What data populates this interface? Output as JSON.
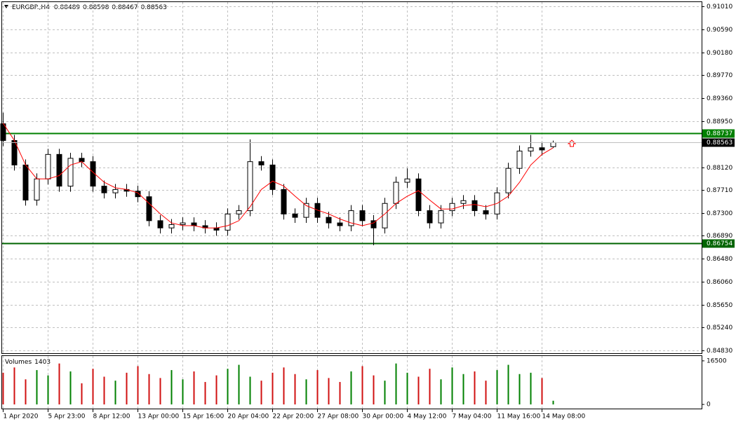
{
  "chart_data": {
    "type": "candlestick",
    "symbol": "EURGBP.,H4",
    "categories": [
      "1 Apr 2020",
      null,
      null,
      null,
      "5 Apr 23:00",
      null,
      null,
      null,
      "8 Apr 12:00",
      null,
      null,
      null,
      "13 Apr 00:00",
      null,
      null,
      null,
      "15 Apr 16:00",
      null,
      null,
      null,
      "20 Apr 04:00",
      null,
      null,
      null,
      "22 Apr 20:00",
      null,
      null,
      null,
      "27 Apr 08:00",
      null,
      null,
      null,
      "30 Apr 00:00",
      null,
      null,
      null,
      "4 May 12:00",
      null,
      null,
      null,
      "7 May 04:00",
      null,
      null,
      null,
      "11 May 16:00",
      null,
      null,
      null,
      "14 May 08:00",
      null
    ],
    "open": [
      0.889,
      0.886,
      0.8816,
      0.8753,
      0.8791,
      0.8835,
      0.8778,
      0.8828,
      0.8822,
      0.8778,
      0.8766,
      0.8772,
      0.8769,
      0.8759,
      0.8716,
      0.8703,
      0.8709,
      0.8712,
      0.8707,
      0.8703,
      0.8699,
      0.8728,
      0.8734,
      0.8822,
      0.8816,
      0.8772,
      0.8728,
      0.8722,
      0.8747,
      0.8722,
      0.8712,
      0.8707,
      0.8734,
      0.8716,
      0.8703,
      0.8747,
      0.8785,
      0.8791,
      0.8734,
      0.8712,
      0.8734,
      0.8747,
      0.8752,
      0.8734,
      0.8728,
      0.8766,
      0.881,
      0.8841,
      0.8847,
      0.88489
    ],
    "high": [
      0.891,
      0.887,
      0.8826,
      0.8801,
      0.8845,
      0.8845,
      0.8838,
      0.8838,
      0.8832,
      0.8788,
      0.8782,
      0.8782,
      0.8779,
      0.8769,
      0.8726,
      0.8719,
      0.8722,
      0.8722,
      0.8717,
      0.8713,
      0.8738,
      0.8744,
      0.8862,
      0.8832,
      0.8826,
      0.8782,
      0.8738,
      0.8757,
      0.8757,
      0.8732,
      0.8722,
      0.8744,
      0.8744,
      0.8726,
      0.8757,
      0.8795,
      0.881,
      0.8801,
      0.8744,
      0.8744,
      0.8757,
      0.8762,
      0.8762,
      0.8744,
      0.8776,
      0.882,
      0.8851,
      0.887,
      0.8857,
      0.88598
    ],
    "low": [
      0.885,
      0.8806,
      0.8743,
      0.8743,
      0.8781,
      0.8768,
      0.8768,
      0.8812,
      0.8768,
      0.8756,
      0.8756,
      0.8759,
      0.8749,
      0.8706,
      0.8693,
      0.8693,
      0.8699,
      0.8697,
      0.8693,
      0.8689,
      0.8689,
      0.8718,
      0.8724,
      0.8806,
      0.8762,
      0.8718,
      0.8712,
      0.8712,
      0.8712,
      0.8702,
      0.8697,
      0.8697,
      0.8706,
      0.8672,
      0.8693,
      0.8737,
      0.8775,
      0.8724,
      0.8702,
      0.8702,
      0.8724,
      0.8737,
      0.8724,
      0.8718,
      0.8718,
      0.8756,
      0.88,
      0.8831,
      0.8833,
      0.88467
    ],
    "close": [
      0.886,
      0.8816,
      0.8753,
      0.8791,
      0.8835,
      0.8778,
      0.8828,
      0.8822,
      0.8778,
      0.8766,
      0.8772,
      0.8769,
      0.8759,
      0.8716,
      0.8703,
      0.8709,
      0.8712,
      0.8707,
      0.8703,
      0.8699,
      0.8728,
      0.8734,
      0.8822,
      0.8816,
      0.8772,
      0.8728,
      0.8722,
      0.8747,
      0.8722,
      0.8712,
      0.8707,
      0.8734,
      0.8716,
      0.8703,
      0.8747,
      0.8785,
      0.8791,
      0.8734,
      0.8712,
      0.8734,
      0.8747,
      0.8752,
      0.8734,
      0.8728,
      0.8766,
      0.881,
      0.8841,
      0.8847,
      0.8843,
      0.88563
    ],
    "ylim": [
      0.8478,
      0.91085
    ],
    "yticks": [
      {
        "value": 0.9101,
        "label": "0.91010"
      },
      {
        "value": 0.9059,
        "label": "0.90590"
      },
      {
        "value": 0.9018,
        "label": "0.90180"
      },
      {
        "value": 0.8977,
        "label": "0.89770"
      },
      {
        "value": 0.8936,
        "label": "0.89360"
      },
      {
        "value": 0.8895,
        "label": "0.88950"
      },
      {
        "value": 0.8812,
        "label": "0.88120"
      },
      {
        "value": 0.8771,
        "label": "0.87710"
      },
      {
        "value": 0.873,
        "label": "0.87300"
      },
      {
        "value": 0.8689,
        "label": "0.86890"
      },
      {
        "value": 0.8648,
        "label": "0.86480"
      },
      {
        "value": 0.8606,
        "label": "0.86060"
      },
      {
        "value": 0.8565,
        "label": "0.85650"
      },
      {
        "value": 0.8524,
        "label": "0.85240"
      },
      {
        "value": 0.8483,
        "label": "0.84830"
      }
    ],
    "grid": true,
    "ma": {
      "color": "#ff0000",
      "values": [
        0.8891,
        0.886,
        0.8816,
        0.8791,
        0.8791,
        0.8797,
        0.8816,
        0.8822,
        0.8803,
        0.8785,
        0.8775,
        0.8772,
        0.8766,
        0.8747,
        0.8728,
        0.8712,
        0.8707,
        0.8707,
        0.8703,
        0.8703,
        0.8707,
        0.8716,
        0.8741,
        0.8772,
        0.8787,
        0.8778,
        0.876,
        0.8743,
        0.8735,
        0.8728,
        0.8719,
        0.8712,
        0.8707,
        0.8712,
        0.8728,
        0.8747,
        0.876,
        0.877,
        0.8753,
        0.8737,
        0.8737,
        0.8743,
        0.8745,
        0.8741,
        0.8747,
        0.876,
        0.8785,
        0.8816,
        0.8835,
        0.8847
      ]
    },
    "hlines": [
      {
        "value": 0.88737,
        "color": "#008000"
      },
      {
        "value": 0.86754,
        "color": "#006400"
      }
    ],
    "volume": {
      "label": "Volumes",
      "ylim": [
        -1570,
        18330
      ],
      "yticks": [
        16500,
        0
      ],
      "up_color": "#008000",
      "down_color": "#d01010",
      "values": [
        12000,
        14000,
        9500,
        13000,
        11000,
        15500,
        12500,
        8000,
        13500,
        10500,
        9000,
        12000,
        14500,
        11500,
        10000,
        13000,
        9500,
        12500,
        8500,
        11000,
        13500,
        15000,
        10500,
        9000,
        12000,
        14000,
        11500,
        9500,
        13000,
        10000,
        8500,
        12500,
        14500,
        11000,
        9000,
        15500,
        12000,
        10500,
        13500,
        9500,
        14000,
        11500,
        12500,
        9000,
        13000,
        15000,
        11500,
        12000,
        10000,
        1403
      ]
    }
  }
}
